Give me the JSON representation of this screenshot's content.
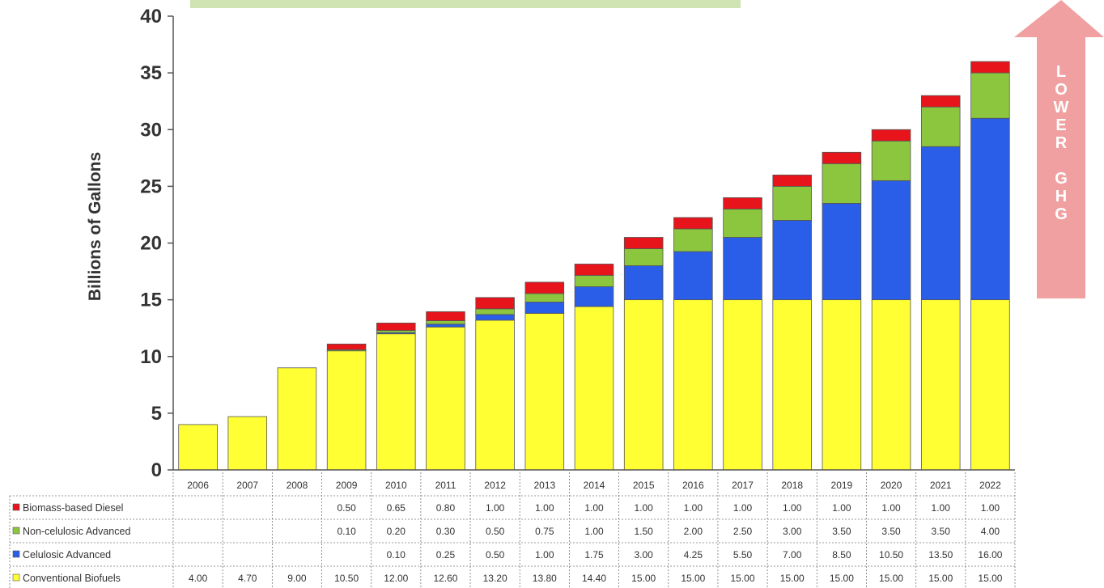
{
  "chart_data": {
    "type": "bar",
    "stacked": true,
    "title": "",
    "xlabel": "",
    "ylabel": "Billions of Gallons",
    "ylim": [
      0,
      40
    ],
    "yticks": [
      0,
      5,
      10,
      15,
      20,
      25,
      30,
      35,
      40
    ],
    "grid": false,
    "legend": "data-table-below",
    "categories": [
      "2006",
      "2007",
      "2008",
      "2009",
      "2010",
      "2011",
      "2012",
      "2013",
      "2014",
      "2015",
      "2016",
      "2017",
      "2018",
      "2019",
      "2020",
      "2021",
      "2022"
    ],
    "series": [
      {
        "name": "Conventional Biofuels",
        "color": "#ffff33",
        "values": [
          4.0,
          4.7,
          9.0,
          10.5,
          12.0,
          12.6,
          13.2,
          13.8,
          14.4,
          15.0,
          15.0,
          15.0,
          15.0,
          15.0,
          15.0,
          15.0,
          15.0
        ],
        "labels": [
          "4.00",
          "4.70",
          "9.00",
          "10.50",
          "12.00",
          "12.60",
          "13.20",
          "13.80",
          "14.40",
          "15.00",
          "15.00",
          "15.00",
          "15.00",
          "15.00",
          "15.00",
          "15.00",
          "15.00"
        ]
      },
      {
        "name": "Celulosic Advanced",
        "color": "#2a5ee8",
        "values": [
          0,
          0,
          0,
          0,
          0.1,
          0.25,
          0.5,
          1.0,
          1.75,
          3.0,
          4.25,
          5.5,
          7.0,
          8.5,
          10.5,
          13.5,
          16.0
        ],
        "labels": [
          "",
          "",
          "",
          "",
          "0.10",
          "0.25",
          "0.50",
          "1.00",
          "1.75",
          "3.00",
          "4.25",
          "5.50",
          "7.00",
          "8.50",
          "10.50",
          "13.50",
          "16.00"
        ]
      },
      {
        "name": "Non-celulosic Advanced",
        "color": "#8cc63f",
        "values": [
          0,
          0,
          0,
          0.1,
          0.2,
          0.3,
          0.5,
          0.75,
          1.0,
          1.5,
          2.0,
          2.5,
          3.0,
          3.5,
          3.5,
          3.5,
          4.0
        ],
        "labels": [
          "",
          "",
          "",
          "0.10",
          "0.20",
          "0.30",
          "0.50",
          "0.75",
          "1.00",
          "1.50",
          "2.00",
          "2.50",
          "3.00",
          "3.50",
          "3.50",
          "3.50",
          "4.00"
        ]
      },
      {
        "name": "Biomass-based Diesel",
        "color": "#e8141c",
        "values": [
          0,
          0,
          0,
          0.5,
          0.65,
          0.8,
          1.0,
          1.0,
          1.0,
          1.0,
          1.0,
          1.0,
          1.0,
          1.0,
          1.0,
          1.0,
          1.0
        ],
        "labels": [
          "",
          "",
          "",
          "0.50",
          "0.65",
          "0.80",
          "1.00",
          "1.00",
          "1.00",
          "1.00",
          "1.00",
          "1.00",
          "1.00",
          "1.00",
          "1.00",
          "1.00",
          "1.00"
        ]
      }
    ],
    "table_row_order": [
      "Biomass-based Diesel",
      "Non-celulosic Advanced",
      "Celulosic Advanced",
      "Conventional Biofuels"
    ],
    "annotation": {
      "text": "LOWER GHG",
      "lines": [
        "L",
        "O",
        "W",
        "E",
        "R",
        "",
        "G",
        "H",
        "G"
      ],
      "arrow_color": "#f0a0a0"
    }
  }
}
